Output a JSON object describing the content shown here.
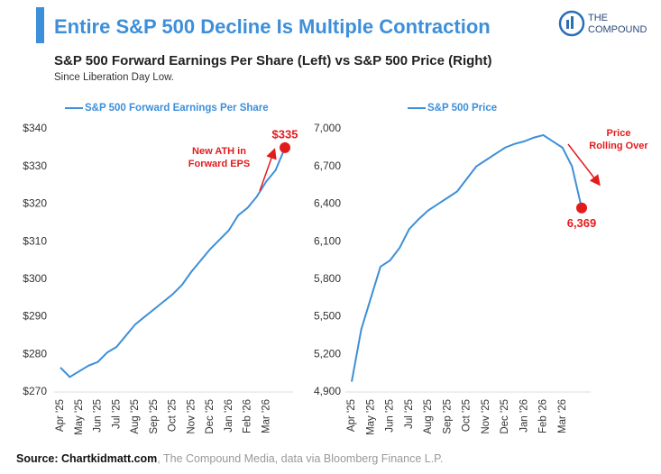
{
  "header": {
    "title": "Entire S&P 500 Decline Is Multiple Contraction",
    "subtitle": "S&P 500 Forward Earnings Per Share (Left) vs S&P 500 Price (Right)",
    "note": "Since Liberation Day Low.",
    "logo": [
      "THE",
      "COMPOUND"
    ]
  },
  "footer": {
    "source": "Source: Chartkidmatt.com",
    "rest": ", The Compound Media, data via Bloomberg Finance L.P."
  },
  "chart_data": [
    {
      "type": "line",
      "categories": [
        "Apr '25",
        null,
        "May '25",
        null,
        "Jun '25",
        null,
        "Jul '25",
        null,
        "Aug '25",
        null,
        "Sep '25",
        null,
        "Oct '25",
        null,
        "Nov '25",
        null,
        "Dec '25",
        null,
        "Jan '26",
        null,
        "Feb '26",
        null,
        "Mar '26",
        null,
        null
      ],
      "series": [
        {
          "name": "S&P 500 Forward Earnings Per Share",
          "color": "#3d8fd9",
          "values": [
            276.5,
            274,
            275.5,
            277,
            278,
            280.5,
            282,
            285,
            288,
            290,
            292,
            294,
            296,
            298.5,
            302,
            305,
            308,
            310.5,
            313,
            317,
            319,
            322,
            326,
            329,
            335
          ],
          "value_labels": [
            null,
            null,
            null,
            null,
            null,
            null,
            null,
            null,
            null,
            null,
            null,
            null,
            null,
            null,
            null,
            null,
            null,
            null,
            null,
            null,
            null,
            null,
            null,
            null,
            "$335"
          ]
        }
      ],
      "ylim": [
        270,
        340
      ],
      "yticks": [
        {
          "value": 270,
          "label": "$270"
        },
        {
          "value": 280,
          "label": "$280"
        },
        {
          "value": 290,
          "label": "$290"
        },
        {
          "value": 300,
          "label": "$300"
        },
        {
          "value": 310,
          "label": "$310"
        },
        {
          "value": 320,
          "label": "$320"
        },
        {
          "value": 330,
          "label": "$330"
        },
        {
          "value": 340,
          "label": "$340"
        }
      ],
      "annotation": [
        "New ATH in",
        "Forward EPS"
      ]
    },
    {
      "type": "line",
      "categories": [
        "Apr '25",
        null,
        "May '25",
        null,
        "Jun '25",
        null,
        "Jul '25",
        null,
        "Aug '25",
        null,
        "Sep '25",
        null,
        "Oct '25",
        null,
        "Nov '25",
        null,
        "Dec '25",
        null,
        "Jan '26",
        null,
        "Feb '26",
        null,
        "Mar '26",
        null,
        null
      ],
      "series": [
        {
          "name": "S&P 500 Price",
          "color": "#3d8fd9",
          "values": [
            4982,
            5400,
            5650,
            5900,
            5950,
            6050,
            6200,
            6280,
            6350,
            6400,
            6450,
            6500,
            6600,
            6700,
            6750,
            6800,
            6850,
            6880,
            6900,
            6930,
            6950,
            6900,
            6850,
            6700,
            6369
          ],
          "value_labels": [
            null,
            null,
            null,
            null,
            null,
            null,
            null,
            null,
            null,
            null,
            null,
            null,
            null,
            null,
            null,
            null,
            null,
            null,
            null,
            null,
            null,
            null,
            null,
            null,
            "6,369"
          ]
        }
      ],
      "ylim": [
        4900,
        7000
      ],
      "yticks": [
        {
          "value": 4900,
          "label": "4,900"
        },
        {
          "value": 5200,
          "label": "5,200"
        },
        {
          "value": 5500,
          "label": "5,500"
        },
        {
          "value": 5800,
          "label": "5,800"
        },
        {
          "value": 6100,
          "label": "6,100"
        },
        {
          "value": 6400,
          "label": "6,400"
        },
        {
          "value": 6700,
          "label": "6,700"
        },
        {
          "value": 7000,
          "label": "7,000"
        }
      ],
      "annotation": [
        "Price",
        "Rolling Over"
      ]
    }
  ]
}
